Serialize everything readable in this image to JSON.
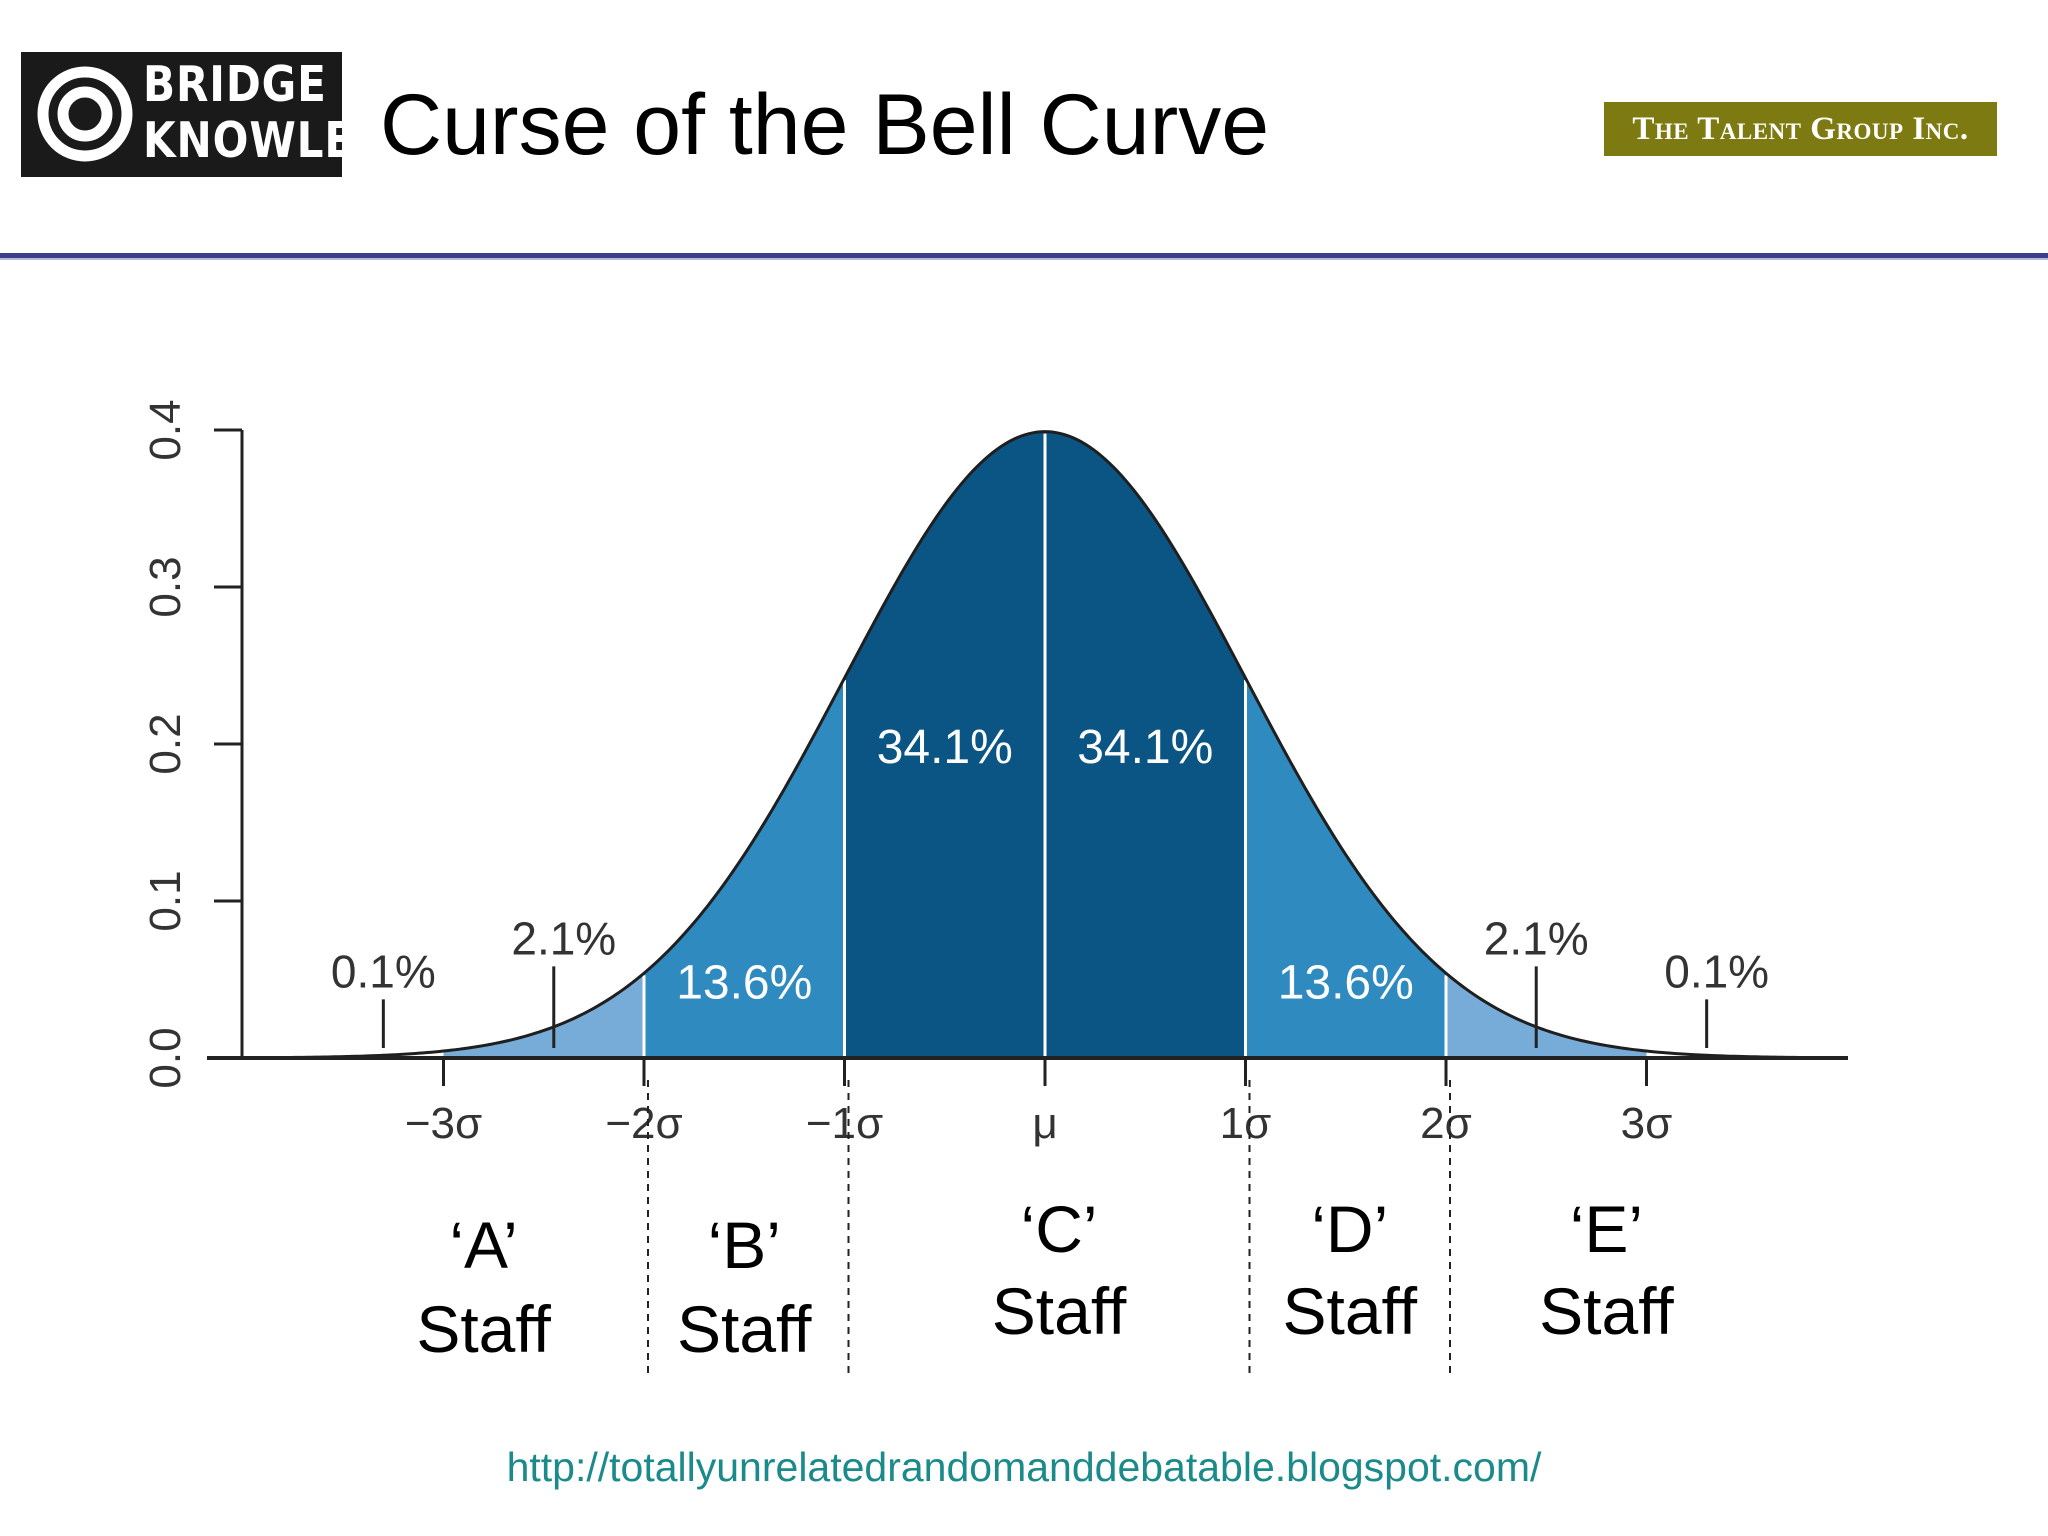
{
  "header": {
    "logo_line1": "BRIDGE",
    "logo_line2": "KNOWLE",
    "title": "Curse of the Bell Curve",
    "brand_right": "The Talent Group Inc."
  },
  "colors": {
    "dark_band": "#0b5585",
    "mid_band": "#2f8ac0",
    "outer_band": "#78acd8",
    "url_color": "#1a8a8a",
    "brand_bg": "#7e7a12",
    "rule_color": "#3a3f8a"
  },
  "chart_data": {
    "type": "area",
    "title": "",
    "xlabel": "",
    "ylabel": "",
    "ylim": [
      0.0,
      0.4
    ],
    "xlim": [
      -4.0,
      4.0
    ],
    "y_ticks": [
      {
        "value": 0.0,
        "label": "0.0"
      },
      {
        "value": 0.1,
        "label": "0.1"
      },
      {
        "value": 0.2,
        "label": "0.2"
      },
      {
        "value": 0.3,
        "label": "0.3"
      },
      {
        "value": 0.4,
        "label": "0.4"
      }
    ],
    "x_ticks": [
      {
        "value": -3,
        "label": "−3σ"
      },
      {
        "value": -2,
        "label": "−2σ"
      },
      {
        "value": -1,
        "label": "−1σ"
      },
      {
        "value": 0,
        "label": "μ"
      },
      {
        "value": 1,
        "label": "1σ"
      },
      {
        "value": 2,
        "label": "2σ"
      },
      {
        "value": 3,
        "label": "3σ"
      }
    ],
    "curve": "standard normal density",
    "bands": [
      {
        "from": -3,
        "to": -2,
        "shade": "outer"
      },
      {
        "from": -2,
        "to": -1,
        "shade": "mid"
      },
      {
        "from": -1,
        "to": 0,
        "shade": "dark"
      },
      {
        "from": 0,
        "to": 1,
        "shade": "dark"
      },
      {
        "from": 1,
        "to": 2,
        "shade": "mid"
      },
      {
        "from": 2,
        "to": 3,
        "shade": "outer"
      }
    ],
    "inside_labels": [
      {
        "text": "34.1%",
        "x": -0.5,
        "y": 0.188
      },
      {
        "text": "34.1%",
        "x": 0.5,
        "y": 0.188
      },
      {
        "text": "13.6%",
        "x": -1.5,
        "y": 0.038
      },
      {
        "text": "13.6%",
        "x": 1.5,
        "y": 0.038
      }
    ],
    "outside_labels": [
      {
        "text": "0.1%",
        "x": -3.3,
        "y": 0.045,
        "pointer_x": -3.3
      },
      {
        "text": "2.1%",
        "x": -2.4,
        "y": 0.066,
        "pointer_x": -2.45
      },
      {
        "text": "2.1%",
        "x": 2.45,
        "y": 0.066,
        "pointer_x": 2.45
      },
      {
        "text": "0.1%",
        "x": 3.35,
        "y": 0.045,
        "pointer_x": 3.3
      }
    ],
    "group_dividers": [
      -2,
      -1,
      1,
      2
    ],
    "groups": [
      {
        "quote": "‘A’",
        "label": "Staff",
        "x": -2.8
      },
      {
        "quote": "‘B’",
        "label": "Staff",
        "x": -1.5
      },
      {
        "quote": "‘C’",
        "label": "Staff",
        "x": 0.07
      },
      {
        "quote": "‘D’",
        "label": "Staff",
        "x": 1.52
      },
      {
        "quote": "‘E’",
        "label": "Staff",
        "x": 2.8
      }
    ]
  },
  "footer": {
    "url": "http://totallyunrelatedrandomanddebatable.blogspot.com/"
  }
}
